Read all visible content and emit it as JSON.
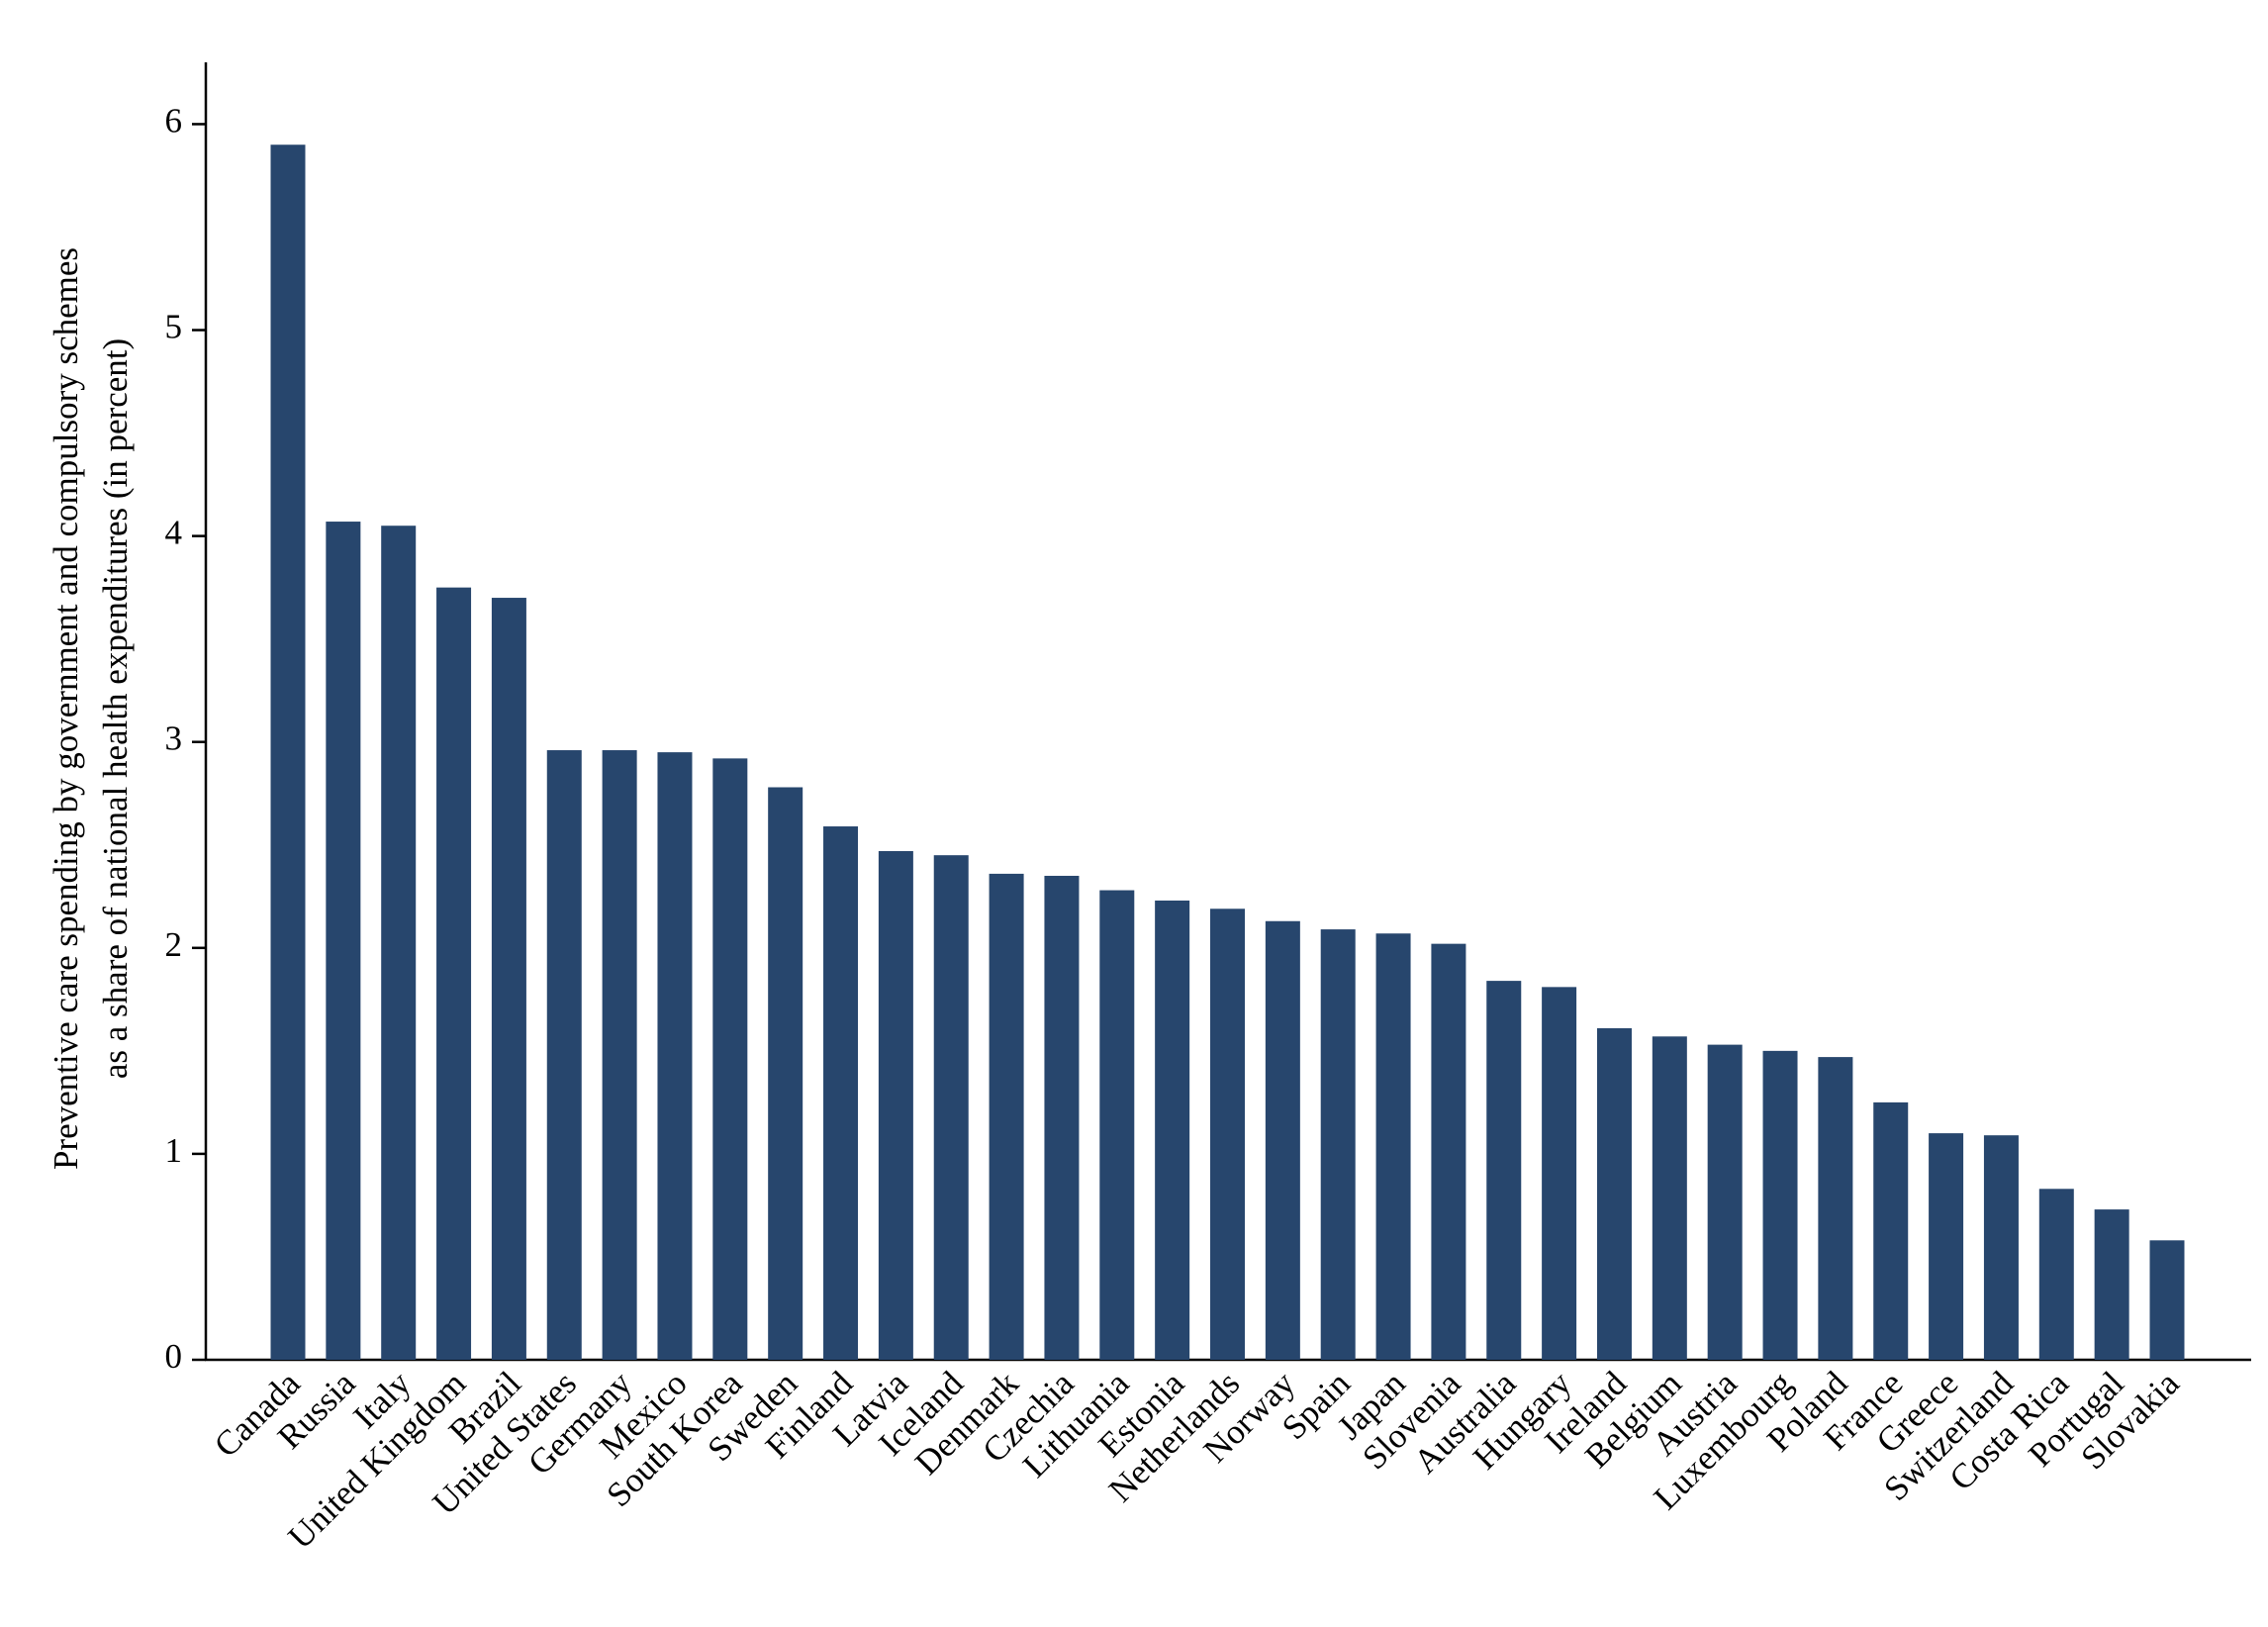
{
  "chart_data": {
    "type": "bar",
    "ylabel": [
      "Preventive care spending by government and compulsory schemes",
      "as a share of national health expenditures (in percent)"
    ],
    "categories": [
      "Canada",
      "Russia",
      "Italy",
      "United Kingdom",
      "Brazil",
      "United States",
      "Germany",
      "Mexico",
      "South Korea",
      "Sweden",
      "Finland",
      "Latvia",
      "Iceland",
      "Denmark",
      "Czechia",
      "Lithuania",
      "Estonia",
      "Netherlands",
      "Norway",
      "Spain",
      "Japan",
      "Slovenia",
      "Australia",
      "Hungary",
      "Ireland",
      "Belgium",
      "Austria",
      "Luxembourg",
      "Poland",
      "France",
      "Greece",
      "Switzerland",
      "Costa Rica",
      "Portugal",
      "Slovakia"
    ],
    "values": [
      5.9,
      4.07,
      4.05,
      3.75,
      3.7,
      2.96,
      2.96,
      2.95,
      2.92,
      2.78,
      2.59,
      2.47,
      2.45,
      2.36,
      2.35,
      2.28,
      2.23,
      2.19,
      2.13,
      2.09,
      2.07,
      2.02,
      1.84,
      1.81,
      1.61,
      1.57,
      1.53,
      1.5,
      1.47,
      1.25,
      1.1,
      1.09,
      0.83,
      0.73,
      0.58
    ],
    "color": "#27466d",
    "ylim": [
      0,
      6.3
    ],
    "yticks": [
      0,
      1,
      2,
      3,
      4,
      5,
      6
    ],
    "grid": false
  }
}
